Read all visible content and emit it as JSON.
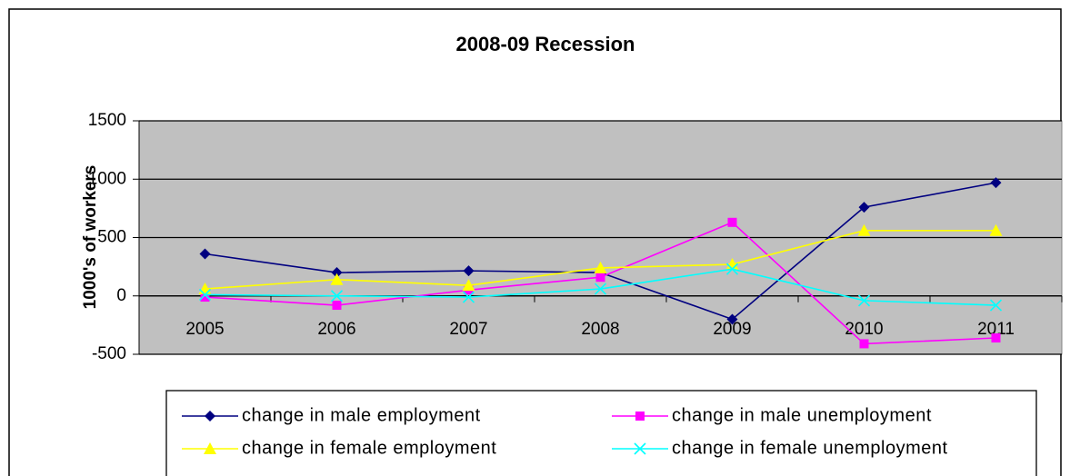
{
  "chart_data": {
    "type": "line",
    "title": "2008-09 Recession",
    "y_label": "1000's of workers",
    "categories": [
      "2005",
      "2006",
      "2007",
      "2008",
      "2009",
      "2010",
      "2011"
    ],
    "series": [
      {
        "name": "change in male employment",
        "color": "#000080",
        "marker": "diamond",
        "values": [
          360,
          200,
          215,
          200,
          -200,
          760,
          970
        ]
      },
      {
        "name": "change in male unemployment",
        "color": "#ff00ff",
        "marker": "square",
        "values": [
          -10,
          -80,
          50,
          160,
          630,
          -410,
          -360
        ]
      },
      {
        "name": "change in female employment",
        "color": "#ffff00",
        "marker": "triangle",
        "values": [
          60,
          140,
          90,
          240,
          270,
          560,
          560
        ]
      },
      {
        "name": "change in female unemployment",
        "color": "#00ffff",
        "marker": "x",
        "values": [
          10,
          0,
          -10,
          60,
          230,
          -40,
          -80
        ]
      }
    ],
    "ylim": [
      -500,
      1500
    ],
    "yticks": [
      -500,
      0,
      500,
      1000,
      1500
    ],
    "grid": true,
    "legend": "bottom"
  }
}
